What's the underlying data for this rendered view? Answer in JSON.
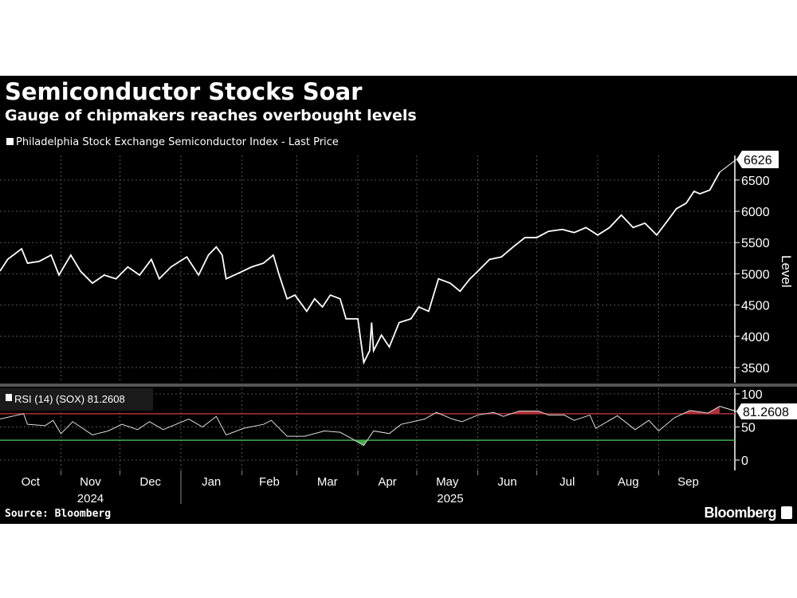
{
  "chart_data": {
    "type": "line",
    "title": "Semiconductor Stocks Soar",
    "subtitle": "Gauge of chipmakers reaches overbought levels",
    "x_unit": "days since 2024-10-01",
    "price": {
      "legend": "Philadelphia Stock Exchange Semiconductor Index - Last Price",
      "ylabel": "Level",
      "ylim": [
        3200,
        6800
      ],
      "yticks": [
        3500,
        4000,
        4500,
        5000,
        5500,
        6000,
        6500
      ],
      "last_label": "6626",
      "x": [
        0,
        4,
        11,
        14,
        20,
        26,
        30,
        36,
        41,
        47,
        53,
        59,
        65,
        71,
        77,
        81,
        87,
        95,
        101,
        106,
        110,
        113,
        115,
        122,
        128,
        134,
        139,
        142,
        146,
        150,
        156,
        160,
        164,
        168,
        173,
        176,
        182,
        185,
        188,
        189,
        190,
        194,
        198,
        203,
        209,
        213,
        218,
        223,
        229,
        234,
        239,
        243,
        249,
        255,
        261,
        267,
        273,
        279,
        286,
        292,
        298,
        304,
        310,
        316,
        322,
        328,
        334,
        340,
        344,
        349,
        353,
        356,
        361,
        366
      ],
      "y": [
        5043,
        5235,
        5400,
        5170,
        5200,
        5300,
        4980,
        5300,
        5040,
        4850,
        4980,
        4920,
        5110,
        4980,
        5230,
        4920,
        5110,
        5270,
        4980,
        5300,
        5430,
        5300,
        4920,
        5020,
        5110,
        5170,
        5300,
        4980,
        4600,
        4660,
        4400,
        4600,
        4470,
        4660,
        4600,
        4280,
        4280,
        3580,
        3770,
        4220,
        3770,
        4020,
        3830,
        4220,
        4280,
        4470,
        4400,
        4920,
        4850,
        4720,
        4920,
        5040,
        5230,
        5270,
        5430,
        5580,
        5580,
        5680,
        5710,
        5660,
        5740,
        5620,
        5740,
        5940,
        5740,
        5810,
        5620,
        5870,
        6040,
        6130,
        6320,
        6280,
        6340,
        6626
      ]
    },
    "rsi": {
      "legend": "RSI (14) (SOX) 81.2608",
      "ylim": [
        0,
        100
      ],
      "yticks": [
        0,
        50,
        100
      ],
      "overbought": 70,
      "oversold": 30,
      "last_label": "81.2608",
      "x": [
        0,
        12,
        14,
        23,
        27,
        31,
        37,
        47,
        55,
        62,
        70,
        76,
        83,
        96,
        103,
        110,
        115,
        124,
        134,
        138,
        146,
        155,
        165,
        173,
        178,
        185,
        190,
        198,
        204,
        216,
        222,
        230,
        235,
        243,
        251,
        256,
        264,
        274,
        279,
        287,
        292,
        300,
        303,
        314,
        323,
        330,
        335,
        343,
        351,
        360,
        366
      ],
      "y": [
        62,
        70,
        54,
        52,
        60,
        40,
        58,
        38,
        44,
        54,
        46,
        58,
        46,
        62,
        50,
        66,
        38,
        48,
        54,
        60,
        36,
        36,
        44,
        42,
        34,
        22,
        44,
        40,
        54,
        62,
        72,
        62,
        58,
        68,
        72,
        66,
        74,
        74,
        68,
        68,
        60,
        68,
        48,
        67,
        46,
        60,
        44,
        64,
        75,
        71,
        81.26
      ]
    },
    "x_months": [
      {
        "label": "Oct",
        "start": 0,
        "end": 31
      },
      {
        "label": "Nov",
        "start": 31,
        "end": 61
      },
      {
        "label": "Dec",
        "start": 61,
        "end": 92
      },
      {
        "label": "Jan",
        "start": 92,
        "end": 123
      },
      {
        "label": "Feb",
        "start": 123,
        "end": 151
      },
      {
        "label": "Mar",
        "start": 151,
        "end": 182
      },
      {
        "label": "Apr",
        "start": 182,
        "end": 212
      },
      {
        "label": "May",
        "start": 212,
        "end": 243
      },
      {
        "label": "Jun",
        "start": 243,
        "end": 273
      },
      {
        "label": "Jul",
        "start": 273,
        "end": 304
      },
      {
        "label": "Aug",
        "start": 304,
        "end": 335
      },
      {
        "label": "Sep",
        "start": 335,
        "end": 365
      }
    ],
    "x_years": [
      {
        "label": "2024",
        "start": 0,
        "end": 92
      },
      {
        "label": "2025",
        "start": 92,
        "end": 366
      }
    ],
    "grid": true,
    "source": "Source: Bloomberg",
    "brand": "Bloomberg",
    "colors": {
      "background": "#000000",
      "line": "#ffffff",
      "overbought": "#b3303a",
      "oversold": "#3fae49",
      "grid": "#555555"
    }
  }
}
